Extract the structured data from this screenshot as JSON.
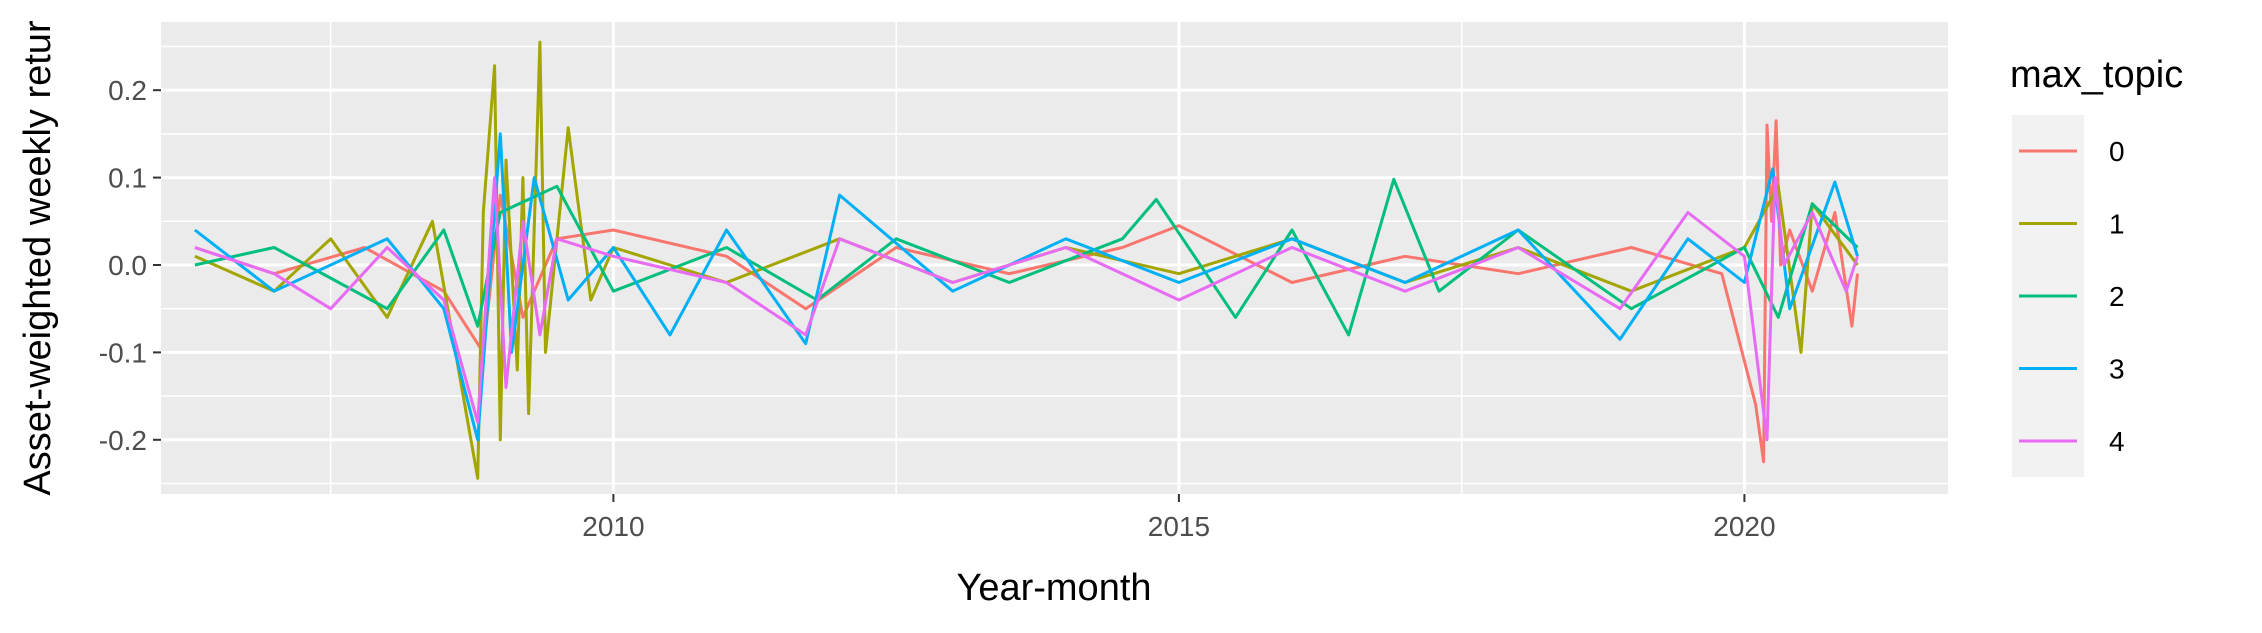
{
  "chart_data": {
    "type": "line",
    "title": "",
    "xlabel": "Year-month",
    "ylabel": "Asset-weighted weekly retur",
    "xlim": [
      2006.0,
      2021.8
    ],
    "ylim": [
      -0.262,
      0.278
    ],
    "x_ticks": [
      2010,
      2015,
      2020
    ],
    "x_tick_labels": [
      "2010",
      "2015",
      "2020"
    ],
    "y_ticks": [
      -0.2,
      -0.1,
      0.0,
      0.1,
      0.2
    ],
    "y_tick_labels": [
      "-0.2",
      "-0.1",
      "0.0",
      "0.1",
      "0.2"
    ],
    "legend": {
      "title": "max_topic",
      "position": "right"
    },
    "grid": true,
    "series": [
      {
        "name": "0",
        "color": "#F8766D",
        "x": [
          2006.3,
          2007.0,
          2007.8,
          2008.5,
          2008.85,
          2009.0,
          2009.2,
          2009.5,
          2010.0,
          2011.0,
          2011.7,
          2012.5,
          2013.5,
          2014.5,
          2015.0,
          2016.0,
          2017.0,
          2018.0,
          2019.0,
          2019.8,
          2020.1,
          2020.17,
          2020.2,
          2020.24,
          2020.28,
          2020.32,
          2020.4,
          2020.6,
          2020.8,
          2020.95,
          2021.0
        ],
        "values": [
          0.02,
          -0.01,
          0.02,
          -0.03,
          -0.1,
          0.08,
          -0.06,
          0.03,
          0.04,
          0.01,
          -0.05,
          0.02,
          -0.01,
          0.02,
          0.045,
          -0.02,
          0.01,
          -0.01,
          0.02,
          -0.01,
          -0.16,
          -0.225,
          0.16,
          0.05,
          0.165,
          0.0,
          0.04,
          -0.03,
          0.06,
          -0.07,
          -0.01
        ]
      },
      {
        "name": "1",
        "color": "#A3A500",
        "x": [
          2006.3,
          2007.0,
          2007.5,
          2008.0,
          2008.4,
          2008.8,
          2008.85,
          2008.95,
          2009.0,
          2009.05,
          2009.15,
          2009.2,
          2009.25,
          2009.35,
          2009.4,
          2009.6,
          2009.8,
          2010.0,
          2011.0,
          2012.0,
          2013.0,
          2014.0,
          2015.0,
          2016.0,
          2017.0,
          2018.0,
          2019.0,
          2020.0,
          2020.3,
          2020.5,
          2020.6,
          2021.0
        ],
        "values": [
          0.01,
          -0.03,
          0.03,
          -0.06,
          0.05,
          -0.244,
          0.06,
          0.228,
          -0.2,
          0.12,
          -0.12,
          0.1,
          -0.17,
          0.255,
          -0.1,
          0.157,
          -0.04,
          0.02,
          -0.02,
          0.03,
          -0.02,
          0.02,
          -0.01,
          0.03,
          -0.02,
          0.02,
          -0.03,
          0.02,
          0.09,
          -0.1,
          0.07,
          0.0
        ]
      },
      {
        "name": "2",
        "color": "#00BF7D",
        "x": [
          2006.3,
          2007.0,
          2008.0,
          2008.5,
          2008.8,
          2009.0,
          2009.5,
          2010.0,
          2011.0,
          2011.8,
          2012.5,
          2013.5,
          2014.5,
          2014.8,
          2015.5,
          2016.0,
          2016.5,
          2016.9,
          2017.3,
          2018.0,
          2019.0,
          2020.0,
          2020.3,
          2020.6,
          2021.0
        ],
        "values": [
          0.0,
          0.02,
          -0.05,
          0.04,
          -0.07,
          0.06,
          0.09,
          -0.03,
          0.02,
          -0.04,
          0.03,
          -0.02,
          0.03,
          0.075,
          -0.06,
          0.04,
          -0.08,
          0.098,
          -0.03,
          0.04,
          -0.05,
          0.02,
          -0.06,
          0.07,
          0.02
        ]
      },
      {
        "name": "3",
        "color": "#00B0F6",
        "x": [
          2006.3,
          2007.0,
          2008.0,
          2008.5,
          2008.8,
          2009.0,
          2009.1,
          2009.3,
          2009.6,
          2010.0,
          2010.5,
          2011.0,
          2011.7,
          2012.0,
          2013.0,
          2014.0,
          2015.0,
          2016.0,
          2017.0,
          2018.0,
          2018.9,
          2019.5,
          2020.0,
          2020.25,
          2020.4,
          2020.8,
          2021.0
        ],
        "values": [
          0.04,
          -0.03,
          0.03,
          -0.05,
          -0.2,
          0.15,
          -0.1,
          0.1,
          -0.04,
          0.02,
          -0.08,
          0.04,
          -0.09,
          0.08,
          -0.03,
          0.03,
          -0.02,
          0.03,
          -0.02,
          0.04,
          -0.085,
          0.03,
          -0.02,
          0.11,
          -0.05,
          0.095,
          0.01
        ]
      },
      {
        "name": "4",
        "color": "#E76BF3",
        "x": [
          2006.3,
          2007.0,
          2007.5,
          2008.0,
          2008.5,
          2008.8,
          2008.95,
          2009.05,
          2009.2,
          2009.35,
          2009.5,
          2010.0,
          2011.0,
          2011.7,
          2012.0,
          2013.0,
          2014.0,
          2015.0,
          2016.0,
          2017.0,
          2018.0,
          2018.9,
          2019.5,
          2020.0,
          2020.2,
          2020.27,
          2020.35,
          2020.6,
          2020.9,
          2021.0
        ],
        "values": [
          0.02,
          -0.01,
          -0.05,
          0.02,
          -0.04,
          -0.18,
          0.1,
          -0.14,
          0.05,
          -0.08,
          0.03,
          0.01,
          -0.02,
          -0.08,
          0.03,
          -0.02,
          0.02,
          -0.04,
          0.02,
          -0.03,
          0.02,
          -0.05,
          0.06,
          0.01,
          -0.2,
          0.1,
          0.0,
          0.06,
          -0.03,
          0.01
        ]
      }
    ]
  }
}
